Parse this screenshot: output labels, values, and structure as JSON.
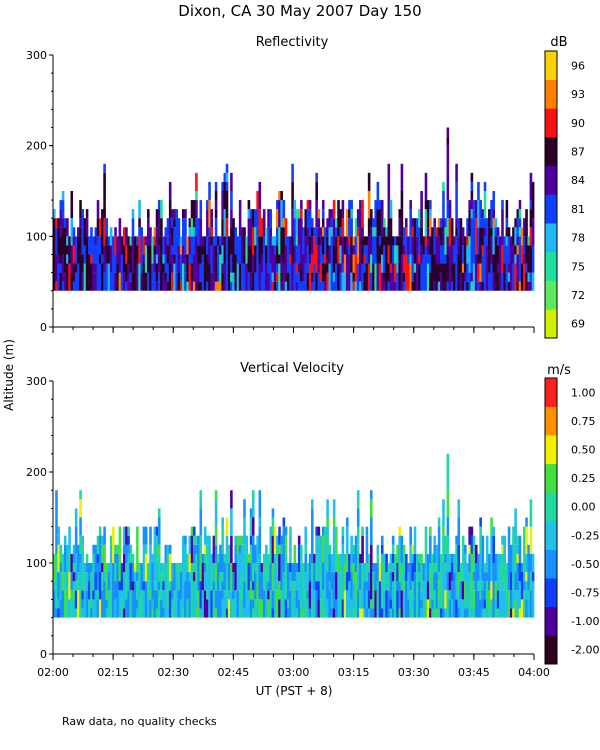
{
  "title": "Dixon, CA 30 May 2007  Day 150",
  "y_axis_label": "Altitude (m)",
  "x_axis_label": "UT  (PST + 8)",
  "note": "Raw data, no quality checks",
  "chart_data": [
    {
      "type": "heatmap",
      "title": "Reflectivity",
      "ylabel": "Altitude (m)",
      "xlabel": "UT  (PST + 8)",
      "ylim": [
        0,
        300
      ],
      "yticks": [
        0,
        100,
        200,
        300
      ],
      "x_range_minutes": [
        0,
        120
      ],
      "xticks": [
        "02:00",
        "02:15",
        "02:30",
        "02:45",
        "03:00",
        "03:15",
        "03:30",
        "03:45",
        "04:00"
      ],
      "colorbar": {
        "unit": "dB",
        "labels": [
          "69",
          "72",
          "75",
          "78",
          "81",
          "84",
          "87",
          "90",
          "93",
          "96"
        ],
        "colors": [
          "#d0f000",
          "#5de85d",
          "#20e0a0",
          "#20b8f0",
          "#1040ff",
          "#5000a0",
          "#2a0028",
          "#ff1010",
          "#ff8000",
          "#ffd000"
        ]
      },
      "data_extent": {
        "min_altitude_m": 40,
        "typical_top_m": 140,
        "max_top_m": 220
      },
      "dominant_values": [
        "81",
        "84",
        "87"
      ]
    },
    {
      "type": "heatmap",
      "title": "Vertical Velocity",
      "ylabel": "Altitude (m)",
      "xlabel": "UT  (PST + 8)",
      "ylim": [
        0,
        300
      ],
      "yticks": [
        0,
        100,
        200,
        300
      ],
      "x_range_minutes": [
        0,
        120
      ],
      "xticks": [
        "02:00",
        "02:15",
        "02:30",
        "02:45",
        "03:00",
        "03:15",
        "03:30",
        "03:45",
        "04:00"
      ],
      "colorbar": {
        "unit": "m/s",
        "labels": [
          "-2.00",
          "-1.00",
          "-0.75",
          "-0.50",
          "-0.25",
          "0.00",
          "0.25",
          "0.50",
          "0.75",
          "1.00"
        ],
        "colors": [
          "#300020",
          "#5000a0",
          "#1040ff",
          "#1890ff",
          "#20c0e8",
          "#20d8a0",
          "#40e040",
          "#f0f000",
          "#ff9000",
          "#ff2020"
        ]
      },
      "data_extent": {
        "min_altitude_m": 40,
        "typical_top_m": 140,
        "max_top_m": 220
      },
      "dominant_values": [
        "-0.50",
        "-0.25",
        "0.00"
      ]
    }
  ]
}
